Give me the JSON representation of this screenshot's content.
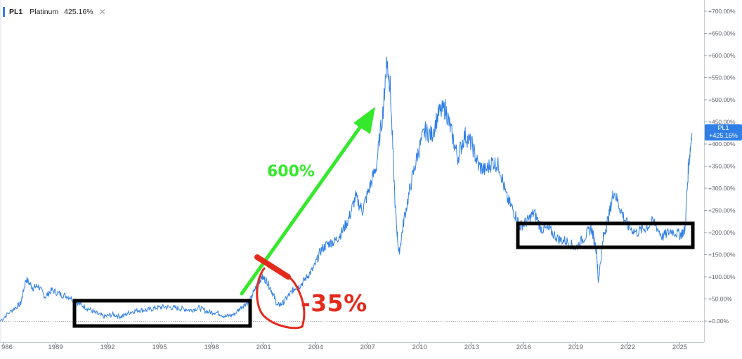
{
  "legend": {
    "symbol": "PL1",
    "name": "Platinum",
    "change": "425.16%",
    "close_glyph": "✕"
  },
  "price_tag": {
    "symbol": "PL1",
    "value": "+425.16%"
  },
  "annotations": {
    "gain_label": "600%",
    "drop_label": "-35%"
  },
  "colors": {
    "line": "#2f7fe6",
    "arrow": "#35e82c",
    "drop": "#e42a1c",
    "box": "#000000"
  },
  "chart_data": {
    "type": "line",
    "series": [
      {
        "name": "PL1",
        "points": [
          [
            1985.8,
            0
          ],
          [
            1986.5,
            25
          ],
          [
            1987.0,
            40
          ],
          [
            1987.3,
            95
          ],
          [
            1987.7,
            75
          ],
          [
            1988.0,
            80
          ],
          [
            1988.4,
            55
          ],
          [
            1988.8,
            70
          ],
          [
            1989.3,
            60
          ],
          [
            1989.8,
            55
          ],
          [
            1990.3,
            40
          ],
          [
            1990.8,
            30
          ],
          [
            1991.3,
            18
          ],
          [
            1991.8,
            10
          ],
          [
            1992.3,
            15
          ],
          [
            1992.8,
            10
          ],
          [
            1993.3,
            20
          ],
          [
            1993.8,
            25
          ],
          [
            1994.3,
            25
          ],
          [
            1994.8,
            30
          ],
          [
            1995.3,
            32
          ],
          [
            1995.8,
            30
          ],
          [
            1996.3,
            28
          ],
          [
            1996.8,
            25
          ],
          [
            1997.3,
            30
          ],
          [
            1997.8,
            20
          ],
          [
            1998.3,
            20
          ],
          [
            1998.8,
            10
          ],
          [
            1999.3,
            15
          ],
          [
            1999.8,
            35
          ],
          [
            2000.2,
            45
          ],
          [
            2000.6,
            80
          ],
          [
            2000.9,
            100
          ],
          [
            2001.2,
            90
          ],
          [
            2001.5,
            65
          ],
          [
            2001.8,
            35
          ],
          [
            2002.1,
            40
          ],
          [
            2002.5,
            60
          ],
          [
            2002.8,
            75
          ],
          [
            2003.1,
            80
          ],
          [
            2003.5,
            100
          ],
          [
            2003.9,
            120
          ],
          [
            2004.3,
            160
          ],
          [
            2004.7,
            175
          ],
          [
            2005.1,
            180
          ],
          [
            2005.5,
            200
          ],
          [
            2005.9,
            230
          ],
          [
            2006.3,
            280
          ],
          [
            2006.7,
            250
          ],
          [
            2007.1,
            300
          ],
          [
            2007.5,
            350
          ],
          [
            2007.9,
            480
          ],
          [
            2008.1,
            590
          ],
          [
            2008.3,
            530
          ],
          [
            2008.6,
            250
          ],
          [
            2008.8,
            150
          ],
          [
            2009.1,
            230
          ],
          [
            2009.5,
            310
          ],
          [
            2009.9,
            380
          ],
          [
            2010.3,
            430
          ],
          [
            2010.7,
            420
          ],
          [
            2011.1,
            470
          ],
          [
            2011.5,
            480
          ],
          [
            2011.8,
            430
          ],
          [
            2012.2,
            370
          ],
          [
            2012.6,
            420
          ],
          [
            2013.0,
            400
          ],
          [
            2013.4,
            350
          ],
          [
            2013.8,
            340
          ],
          [
            2014.2,
            360
          ],
          [
            2014.6,
            350
          ],
          [
            2015.0,
            280
          ],
          [
            2015.4,
            250
          ],
          [
            2015.8,
            215
          ],
          [
            2016.2,
            225
          ],
          [
            2016.6,
            245
          ],
          [
            2017.0,
            210
          ],
          [
            2017.5,
            205
          ],
          [
            2018.0,
            185
          ],
          [
            2018.5,
            180
          ],
          [
            2019.0,
            165
          ],
          [
            2019.5,
            190
          ],
          [
            2019.9,
            210
          ],
          [
            2020.2,
            160
          ],
          [
            2020.3,
            90
          ],
          [
            2020.6,
            190
          ],
          [
            2020.9,
            235
          ],
          [
            2021.2,
            295
          ],
          [
            2021.6,
            250
          ],
          [
            2022.0,
            215
          ],
          [
            2022.5,
            200
          ],
          [
            2023.0,
            210
          ],
          [
            2023.5,
            225
          ],
          [
            2024.0,
            190
          ],
          [
            2024.5,
            205
          ],
          [
            2025.0,
            195
          ],
          [
            2025.3,
            205
          ],
          [
            2025.5,
            350
          ],
          [
            2025.7,
            425.16
          ]
        ]
      }
    ],
    "x_ticks": [
      "986",
      "1989",
      "1992",
      "1995",
      "1998",
      "2001",
      "2004",
      "2007",
      "2010",
      "2013",
      "2016",
      "2019",
      "2022",
      "2025"
    ],
    "y_ticks": [
      "+0.00%",
      "+50.00%",
      "+100.00%",
      "+150.00%",
      "+200.00%",
      "+250.00%",
      "+300.00%",
      "+350.00%",
      "+400.00%",
      "+450.00%",
      "+500.00%",
      "+550.00%",
      "+600.00%",
      "+650.00%",
      "+700.00%"
    ],
    "xlim": [
      1985.8,
      2026.4
    ],
    "ylim": [
      -20,
      710
    ],
    "grid": false,
    "baseline_value": 0
  }
}
